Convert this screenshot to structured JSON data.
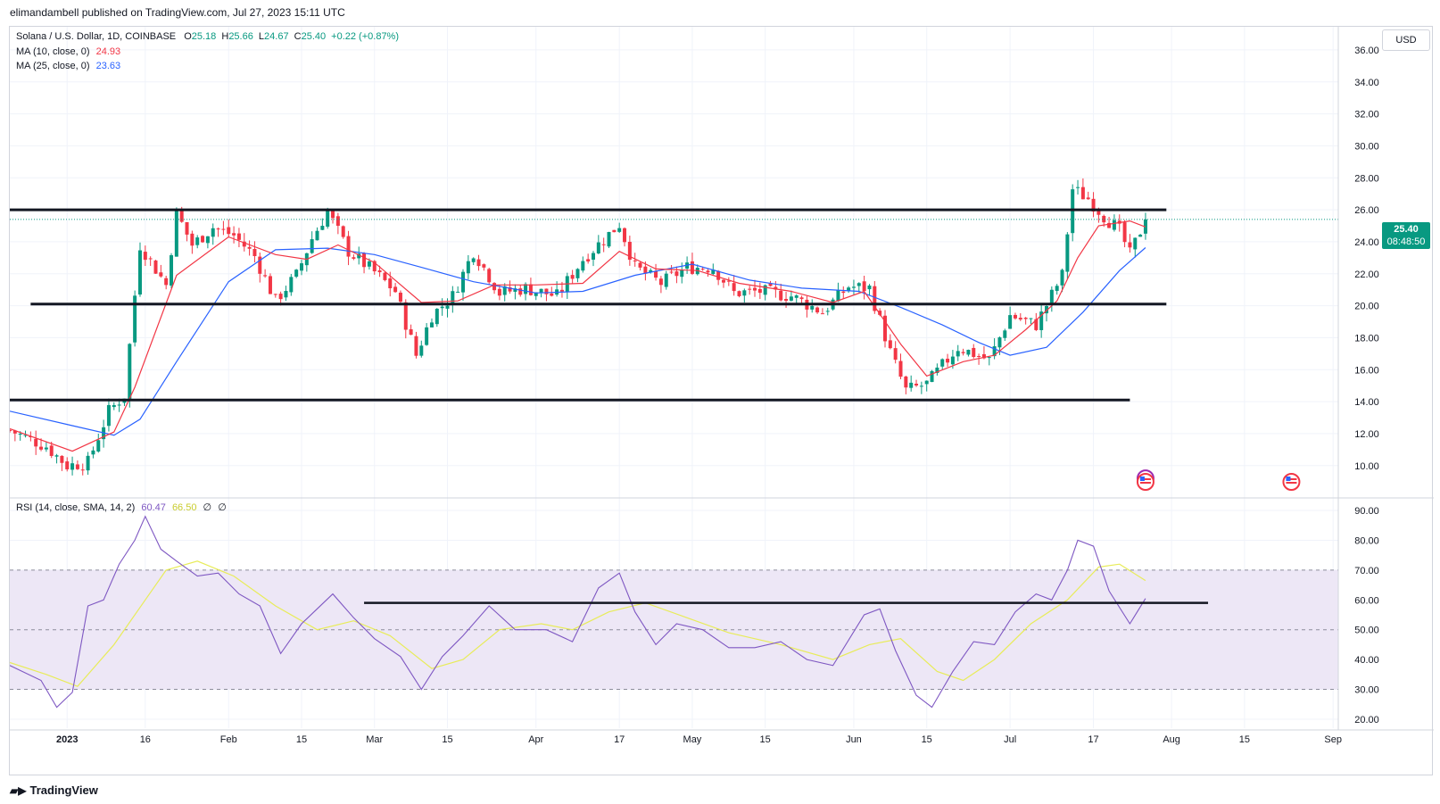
{
  "publisher_line": "elimandambell published on TradingView.com, Jul 27, 2023 15:11 UTC",
  "legend": {
    "symbol": "Solana / U.S. Dollar, 1D, COINBASE",
    "o_label": "O",
    "o": "25.18",
    "h_label": "H",
    "h": "25.66",
    "l_label": "L",
    "l": "24.67",
    "c_label": "C",
    "c": "25.40",
    "change": "+0.22 (+0.87%)",
    "ma10_label": "MA (10, close, 0)",
    "ma10_value": "24.93",
    "ma25_label": "MA (25, close, 0)",
    "ma25_value": "23.63",
    "rsi_label": "RSI (14, close, SMA, 14, 2)",
    "rsi_value": "60.47",
    "rsi_sma": "66.50",
    "rsi_extra1": "∅",
    "rsi_extra2": "∅"
  },
  "currency_button": "USD",
  "last_price_tag": {
    "price": "25.40",
    "countdown": "08:48:50"
  },
  "footer": {
    "brand": "TradingView"
  },
  "colors": {
    "up": "#089981",
    "down": "#f23645",
    "ma10": "#f23645",
    "ma25": "#2962ff",
    "rsi": "#7e57c2",
    "rsi_sma": "#e8ec59",
    "band": "#ede7f6",
    "grid": "#f0f3fa",
    "level": "#131722"
  },
  "chart_data": [
    {
      "type": "candlestick",
      "title": "Solana / U.S. Dollar, 1D, COINBASE",
      "ylim": [
        8.2,
        37.0
      ],
      "y_ticks": [
        "36.00",
        "34.00",
        "32.00",
        "30.00",
        "28.00",
        "26.00",
        "24.00",
        "22.00",
        "20.00",
        "18.00",
        "16.00",
        "14.00",
        "12.00",
        "10.00"
      ],
      "x_ticks": [
        "2023",
        "16",
        "Feb",
        "15",
        "Mar",
        "15",
        "Apr",
        "17",
        "May",
        "15",
        "Jun",
        "15",
        "Jul",
        "17",
        "Aug",
        "15",
        "Sep"
      ],
      "x_tick_dates": [
        "2023-01-01",
        "2023-01-16",
        "2023-02-01",
        "2023-02-15",
        "2023-03-01",
        "2023-03-15",
        "2023-04-01",
        "2023-04-17",
        "2023-05-01",
        "2023-05-15",
        "2023-06-01",
        "2023-06-15",
        "2023-07-01",
        "2023-07-17",
        "2023-08-01",
        "2023-08-15",
        "2023-09-01"
      ],
      "x_range": [
        "2022-12-21",
        "2023-09-02"
      ],
      "close_path": [
        [
          "2022-12-21",
          12.2
        ],
        [
          "2022-12-28",
          11.2
        ],
        [
          "2023-01-01",
          10.0
        ],
        [
          "2023-01-05",
          10.2
        ],
        [
          "2023-01-09",
          13.4
        ],
        [
          "2023-01-12",
          14.4
        ],
        [
          "2023-01-15",
          23.8
        ],
        [
          "2023-01-20",
          21.3
        ],
        [
          "2023-01-22",
          25.8
        ],
        [
          "2023-01-25",
          23.8
        ],
        [
          "2023-01-29",
          24.9
        ],
        [
          "2023-02-02",
          24.4
        ],
        [
          "2023-02-06",
          23.1
        ],
        [
          "2023-02-10",
          20.3
        ],
        [
          "2023-02-14",
          21.9
        ],
        [
          "2023-02-17",
          24.2
        ],
        [
          "2023-02-20",
          25.9
        ],
        [
          "2023-02-24",
          23.4
        ],
        [
          "2023-03-01",
          22.1
        ],
        [
          "2023-03-05",
          20.9
        ],
        [
          "2023-03-09",
          16.9
        ],
        [
          "2023-03-12",
          19.4
        ],
        [
          "2023-03-16",
          20.6
        ],
        [
          "2023-03-20",
          23.4
        ],
        [
          "2023-03-25",
          20.8
        ],
        [
          "2023-03-30",
          21.1
        ],
        [
          "2023-04-05",
          20.6
        ],
        [
          "2023-04-10",
          22.9
        ],
        [
          "2023-04-17",
          25.1
        ],
        [
          "2023-04-20",
          22.4
        ],
        [
          "2023-04-25",
          21.4
        ],
        [
          "2023-04-30",
          22.4
        ],
        [
          "2023-05-05",
          22.4
        ],
        [
          "2023-05-09",
          20.8
        ],
        [
          "2023-05-14",
          20.9
        ],
        [
          "2023-05-20",
          20.6
        ],
        [
          "2023-05-26",
          19.6
        ],
        [
          "2023-05-31",
          21.2
        ],
        [
          "2023-06-04",
          21.1
        ],
        [
          "2023-06-08",
          17.1
        ],
        [
          "2023-06-11",
          14.7
        ],
        [
          "2023-06-15",
          15.1
        ],
        [
          "2023-06-21",
          17.4
        ],
        [
          "2023-06-27",
          16.6
        ],
        [
          "2023-07-01",
          19.4
        ],
        [
          "2023-07-06",
          18.8
        ],
        [
          "2023-07-11",
          21.9
        ],
        [
          "2023-07-13",
          27.3
        ],
        [
          "2023-07-16",
          26.7
        ],
        [
          "2023-07-19",
          25.6
        ],
        [
          "2023-07-22",
          24.7
        ],
        [
          "2023-07-24",
          23.2
        ],
        [
          "2023-07-27",
          25.4
        ]
      ],
      "last_close": 25.4,
      "ma10_path": [
        [
          "2022-12-21",
          12.3
        ],
        [
          "2023-01-02",
          10.9
        ],
        [
          "2023-01-10",
          12.1
        ],
        [
          "2023-01-14",
          14.9
        ],
        [
          "2023-01-22",
          21.9
        ],
        [
          "2023-02-01",
          24.3
        ],
        [
          "2023-02-10",
          23.2
        ],
        [
          "2023-02-16",
          22.9
        ],
        [
          "2023-02-22",
          23.8
        ],
        [
          "2023-03-01",
          22.7
        ],
        [
          "2023-03-10",
          20.2
        ],
        [
          "2023-03-17",
          20.3
        ],
        [
          "2023-03-24",
          21.3
        ],
        [
          "2023-04-01",
          21.3
        ],
        [
          "2023-04-10",
          21.4
        ],
        [
          "2023-04-17",
          23.4
        ],
        [
          "2023-04-24",
          22.3
        ],
        [
          "2023-05-02",
          22.2
        ],
        [
          "2023-05-10",
          21.4
        ],
        [
          "2023-05-20",
          20.9
        ],
        [
          "2023-05-28",
          20.2
        ],
        [
          "2023-06-03",
          20.9
        ],
        [
          "2023-06-10",
          17.6
        ],
        [
          "2023-06-15",
          15.6
        ],
        [
          "2023-06-22",
          16.5
        ],
        [
          "2023-06-28",
          16.9
        ],
        [
          "2023-07-04",
          18.5
        ],
        [
          "2023-07-10",
          20.3
        ],
        [
          "2023-07-14",
          23.0
        ],
        [
          "2023-07-18",
          25.0
        ],
        [
          "2023-07-24",
          25.3
        ],
        [
          "2023-07-27",
          24.93
        ]
      ],
      "ma25_path": [
        [
          "2022-12-21",
          13.4
        ],
        [
          "2023-01-02",
          12.5
        ],
        [
          "2023-01-10",
          11.9
        ],
        [
          "2023-01-15",
          12.9
        ],
        [
          "2023-01-22",
          16.5
        ],
        [
          "2023-02-01",
          21.5
        ],
        [
          "2023-02-10",
          23.5
        ],
        [
          "2023-02-20",
          23.6
        ],
        [
          "2023-03-01",
          23.2
        ],
        [
          "2023-03-10",
          22.4
        ],
        [
          "2023-03-20",
          21.5
        ],
        [
          "2023-04-01",
          20.8
        ],
        [
          "2023-04-10",
          20.9
        ],
        [
          "2023-04-20",
          21.9
        ],
        [
          "2023-05-01",
          22.6
        ],
        [
          "2023-05-12",
          21.6
        ],
        [
          "2023-05-22",
          21.1
        ],
        [
          "2023-06-02",
          20.9
        ],
        [
          "2023-06-10",
          19.9
        ],
        [
          "2023-06-18",
          18.8
        ],
        [
          "2023-06-25",
          17.7
        ],
        [
          "2023-07-01",
          16.9
        ],
        [
          "2023-07-08",
          17.4
        ],
        [
          "2023-07-15",
          19.6
        ],
        [
          "2023-07-22",
          22.2
        ],
        [
          "2023-07-27",
          23.63
        ]
      ],
      "levels": [
        {
          "y": 26.0,
          "from": "2022-12-21",
          "to": "2023-07-31"
        },
        {
          "y": 20.1,
          "from": "2022-12-25",
          "to": "2023-07-31"
        },
        {
          "y": 14.1,
          "from": "2022-12-21",
          "to": "2023-07-24"
        }
      ]
    },
    {
      "type": "line",
      "title": "RSI (14, close, SMA, 14, 2)",
      "ylim": [
        17,
        93
      ],
      "y_ticks": [
        "90.00",
        "80.00",
        "70.00",
        "60.00",
        "50.00",
        "40.00",
        "30.00",
        "20.00"
      ],
      "band": [
        30,
        70
      ],
      "midline": 50,
      "series": [
        {
          "values": [
            [
              "2022-12-21",
              38
            ],
            [
              "2022-12-27",
              33
            ],
            [
              "2022-12-30",
              24
            ],
            [
              "2023-01-02",
              29
            ],
            [
              "2023-01-05",
              58
            ],
            [
              "2023-01-08",
              60
            ],
            [
              "2023-01-11",
              72
            ],
            [
              "2023-01-14",
              80
            ],
            [
              "2023-01-16",
              88
            ],
            [
              "2023-01-19",
              77
            ],
            [
              "2023-01-22",
              73
            ],
            [
              "2023-01-26",
              68
            ],
            [
              "2023-01-30",
              69
            ],
            [
              "2023-02-03",
              62
            ],
            [
              "2023-02-07",
              58
            ],
            [
              "2023-02-11",
              42
            ],
            [
              "2023-02-15",
              52
            ],
            [
              "2023-02-18",
              57
            ],
            [
              "2023-02-21",
              62
            ],
            [
              "2023-02-25",
              54
            ],
            [
              "2023-03-01",
              47
            ],
            [
              "2023-03-06",
              41
            ],
            [
              "2023-03-10",
              30
            ],
            [
              "2023-03-14",
              41
            ],
            [
              "2023-03-18",
              48
            ],
            [
              "2023-03-23",
              58
            ],
            [
              "2023-03-28",
              50
            ],
            [
              "2023-04-03",
              50
            ],
            [
              "2023-04-08",
              46
            ],
            [
              "2023-04-13",
              64
            ],
            [
              "2023-04-17",
              69
            ],
            [
              "2023-04-20",
              56
            ],
            [
              "2023-04-24",
              45
            ],
            [
              "2023-04-28",
              52
            ],
            [
              "2023-05-03",
              50
            ],
            [
              "2023-05-08",
              44
            ],
            [
              "2023-05-13",
              44
            ],
            [
              "2023-05-18",
              46
            ],
            [
              "2023-05-23",
              40
            ],
            [
              "2023-05-28",
              38
            ],
            [
              "2023-06-03",
              55
            ],
            [
              "2023-06-06",
              57
            ],
            [
              "2023-06-09",
              43
            ],
            [
              "2023-06-13",
              28
            ],
            [
              "2023-06-16",
              24
            ],
            [
              "2023-06-20",
              36
            ],
            [
              "2023-06-24",
              46
            ],
            [
              "2023-06-28",
              45
            ],
            [
              "2023-07-02",
              56
            ],
            [
              "2023-07-06",
              62
            ],
            [
              "2023-07-09",
              60
            ],
            [
              "2023-07-12",
              70
            ],
            [
              "2023-07-14",
              80
            ],
            [
              "2023-07-17",
              78
            ],
            [
              "2023-07-20",
              63
            ],
            [
              "2023-07-24",
              52
            ],
            [
              "2023-07-27",
              60.47
            ]
          ]
        },
        {
          "values": [
            [
              "2022-12-21",
              39
            ],
            [
              "2022-12-28",
              35
            ],
            [
              "2023-01-03",
              31
            ],
            [
              "2023-01-10",
              45
            ],
            [
              "2023-01-16",
              60
            ],
            [
              "2023-01-20",
              70
            ],
            [
              "2023-01-26",
              73
            ],
            [
              "2023-02-02",
              68
            ],
            [
              "2023-02-10",
              58
            ],
            [
              "2023-02-18",
              50
            ],
            [
              "2023-02-25",
              53
            ],
            [
              "2023-03-04",
              48
            ],
            [
              "2023-03-12",
              37
            ],
            [
              "2023-03-18",
              40
            ],
            [
              "2023-03-25",
              50
            ],
            [
              "2023-04-02",
              52
            ],
            [
              "2023-04-08",
              50
            ],
            [
              "2023-04-15",
              56
            ],
            [
              "2023-04-22",
              59
            ],
            [
              "2023-04-30",
              54
            ],
            [
              "2023-05-08",
              49
            ],
            [
              "2023-05-18",
              45
            ],
            [
              "2023-05-28",
              40
            ],
            [
              "2023-06-04",
              45
            ],
            [
              "2023-06-10",
              47
            ],
            [
              "2023-06-17",
              36
            ],
            [
              "2023-06-22",
              33
            ],
            [
              "2023-06-28",
              40
            ],
            [
              "2023-07-05",
              52
            ],
            [
              "2023-07-12",
              60
            ],
            [
              "2023-07-18",
              71
            ],
            [
              "2023-07-22",
              72
            ],
            [
              "2023-07-27",
              66.5
            ]
          ]
        }
      ],
      "trendline": {
        "y": 59.0,
        "from": "2023-02-27",
        "to": "2023-08-08"
      }
    }
  ]
}
